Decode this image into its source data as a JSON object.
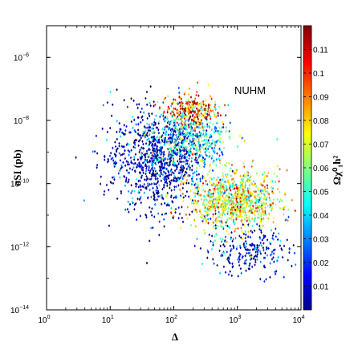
{
  "chart_data": {
    "type": "scatter",
    "title": "",
    "annotation": "NUHM",
    "xlabel": "Δ",
    "ylabel": "σSI (pb)",
    "xscale": "log",
    "yscale": "log",
    "xlim": [
      1,
      10000
    ],
    "ylim": [
      1e-14,
      1e-05
    ],
    "x_ticks": [
      1,
      10,
      100,
      1000,
      10000
    ],
    "x_tick_labels": [
      [
        "10",
        "0"
      ],
      [
        "10",
        "1"
      ],
      [
        "10",
        "2"
      ],
      [
        "10",
        "3"
      ],
      [
        "10",
        "4"
      ]
    ],
    "y_ticks": [
      1e-14,
      1e-12,
      1e-10,
      1e-08,
      1e-06
    ],
    "y_tick_labels": [
      [
        "10",
        "−14"
      ],
      [
        "10",
        "−12"
      ],
      [
        "10",
        "−10"
      ],
      [
        "10",
        "−8"
      ],
      [
        "10",
        "−6"
      ]
    ],
    "colorbar": {
      "label": "Ωχ⁰₁h²",
      "range": [
        0,
        0.12
      ],
      "colormap": "jet",
      "ticks": [
        "0.01",
        "0.02",
        "0.03",
        "0.04",
        "0.05",
        "0.06",
        "0.07",
        "0.08",
        "0.09",
        "0.1",
        "0.11"
      ]
    },
    "point_clusters": [
      {
        "region": "main-blue-cloud",
        "x_center": 60,
        "y_center": 5e-10,
        "x_spread_dex": 0.35,
        "y_spread_dex": 0.8,
        "omega_mean": 0.004,
        "count": 900
      },
      {
        "region": "dense-cyan-band",
        "x_center": 180,
        "y_center": 3e-09,
        "x_spread_dex": 0.3,
        "y_spread_dex": 0.5,
        "omega_mean": 0.045,
        "count": 500
      },
      {
        "region": "upper-orange-ridge",
        "x_center": 200,
        "y_center": 2e-08,
        "x_spread_dex": 0.2,
        "y_spread_dex": 0.25,
        "omega_mean": 0.095,
        "count": 220
      },
      {
        "region": "diagonal-band",
        "x_center": 900,
        "y_center": 3e-11,
        "x_spread_dex": 0.35,
        "y_spread_dex": 0.45,
        "omega_mean": 0.07,
        "count": 900
      },
      {
        "region": "lower-blue-tail",
        "x_center": 1500,
        "y_center": 8e-13,
        "x_spread_dex": 0.35,
        "y_spread_dex": 0.4,
        "omega_mean": 0.008,
        "count": 250
      },
      {
        "region": "sparse-left",
        "x_center": 12,
        "y_center": 2e-09,
        "x_spread_dex": 0.25,
        "y_spread_dex": 0.8,
        "omega_mean": 0.003,
        "count": 60
      }
    ]
  }
}
